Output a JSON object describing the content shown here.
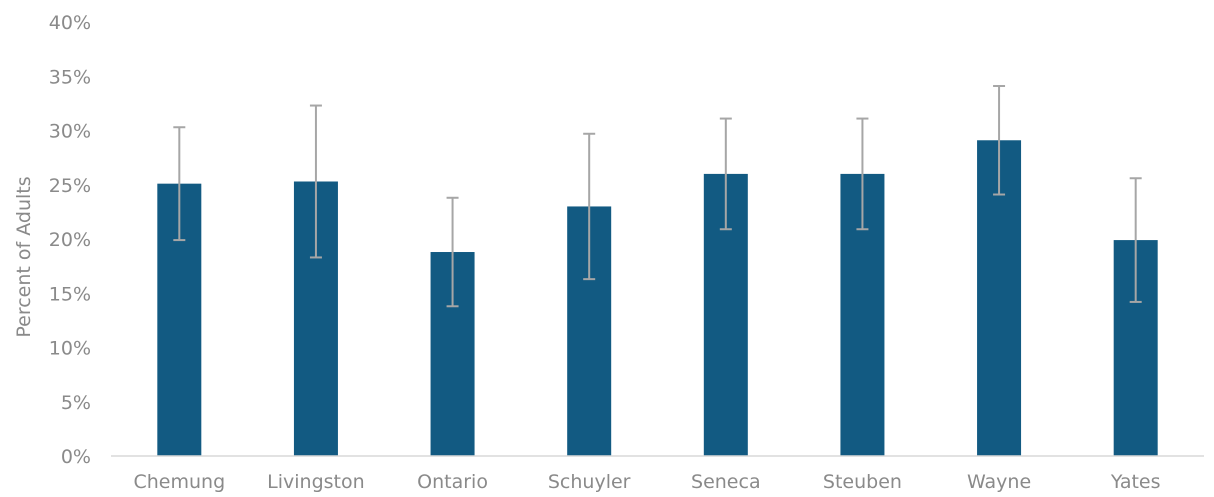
{
  "chart_data": {
    "type": "bar",
    "title": "",
    "xlabel": "",
    "ylabel": "Percent of Adults",
    "ylim": [
      0,
      40
    ],
    "y_ticks": [
      0,
      5,
      10,
      15,
      20,
      25,
      30,
      35,
      40
    ],
    "y_tick_format": "percent",
    "grid": false,
    "legend": "none",
    "categories": [
      "Chemung",
      "Livingston",
      "Ontario",
      "Schuyler",
      "Seneca",
      "Steuben",
      "Wayne",
      "Yates"
    ],
    "series": [
      {
        "values": [
          25.1,
          25.3,
          18.8,
          23.0,
          26.0,
          26.0,
          29.1,
          19.9
        ],
        "error_low": [
          19.9,
          18.3,
          13.8,
          16.3,
          20.9,
          20.9,
          24.1,
          14.2
        ],
        "error_high": [
          30.3,
          32.3,
          23.8,
          29.7,
          31.1,
          31.1,
          34.1,
          25.6
        ]
      }
    ],
    "colors": {
      "bar": "#125a82",
      "error_bar": "#a6a6a6",
      "axis": "#d9d9d9",
      "text": "#8a8a8a"
    }
  }
}
